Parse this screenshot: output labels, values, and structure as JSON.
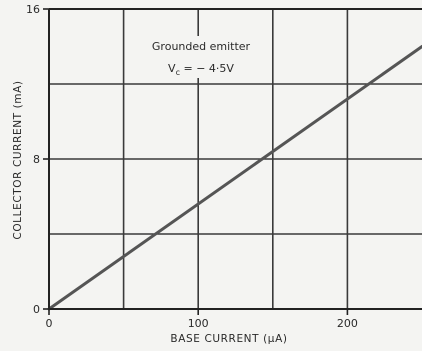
{
  "chart_data": {
    "type": "line",
    "title": "",
    "xlabel": "BASE CURRENT (μA)",
    "ylabel": "COLLECTOR CURRENT (mA)",
    "xlim": [
      0,
      250
    ],
    "ylim": [
      0,
      16
    ],
    "x_ticks": [
      0,
      100,
      200
    ],
    "x_tick_labels": [
      "0",
      "100",
      "200"
    ],
    "y_ticks": [
      0,
      8,
      16
    ],
    "y_tick_labels": [
      "0",
      "8",
      "16"
    ],
    "grid": true,
    "x_grid": [
      50,
      100,
      150,
      200
    ],
    "y_grid": [
      4,
      8,
      12
    ],
    "annotation": {
      "line1": "Grounded emitter",
      "line2": "V",
      "line2_sub": "c",
      "line2_rest": " = − 4·5V"
    },
    "series": [
      {
        "x": [
          0,
          250
        ],
        "y": [
          0,
          14.0
        ],
        "color": "#555555"
      }
    ]
  }
}
